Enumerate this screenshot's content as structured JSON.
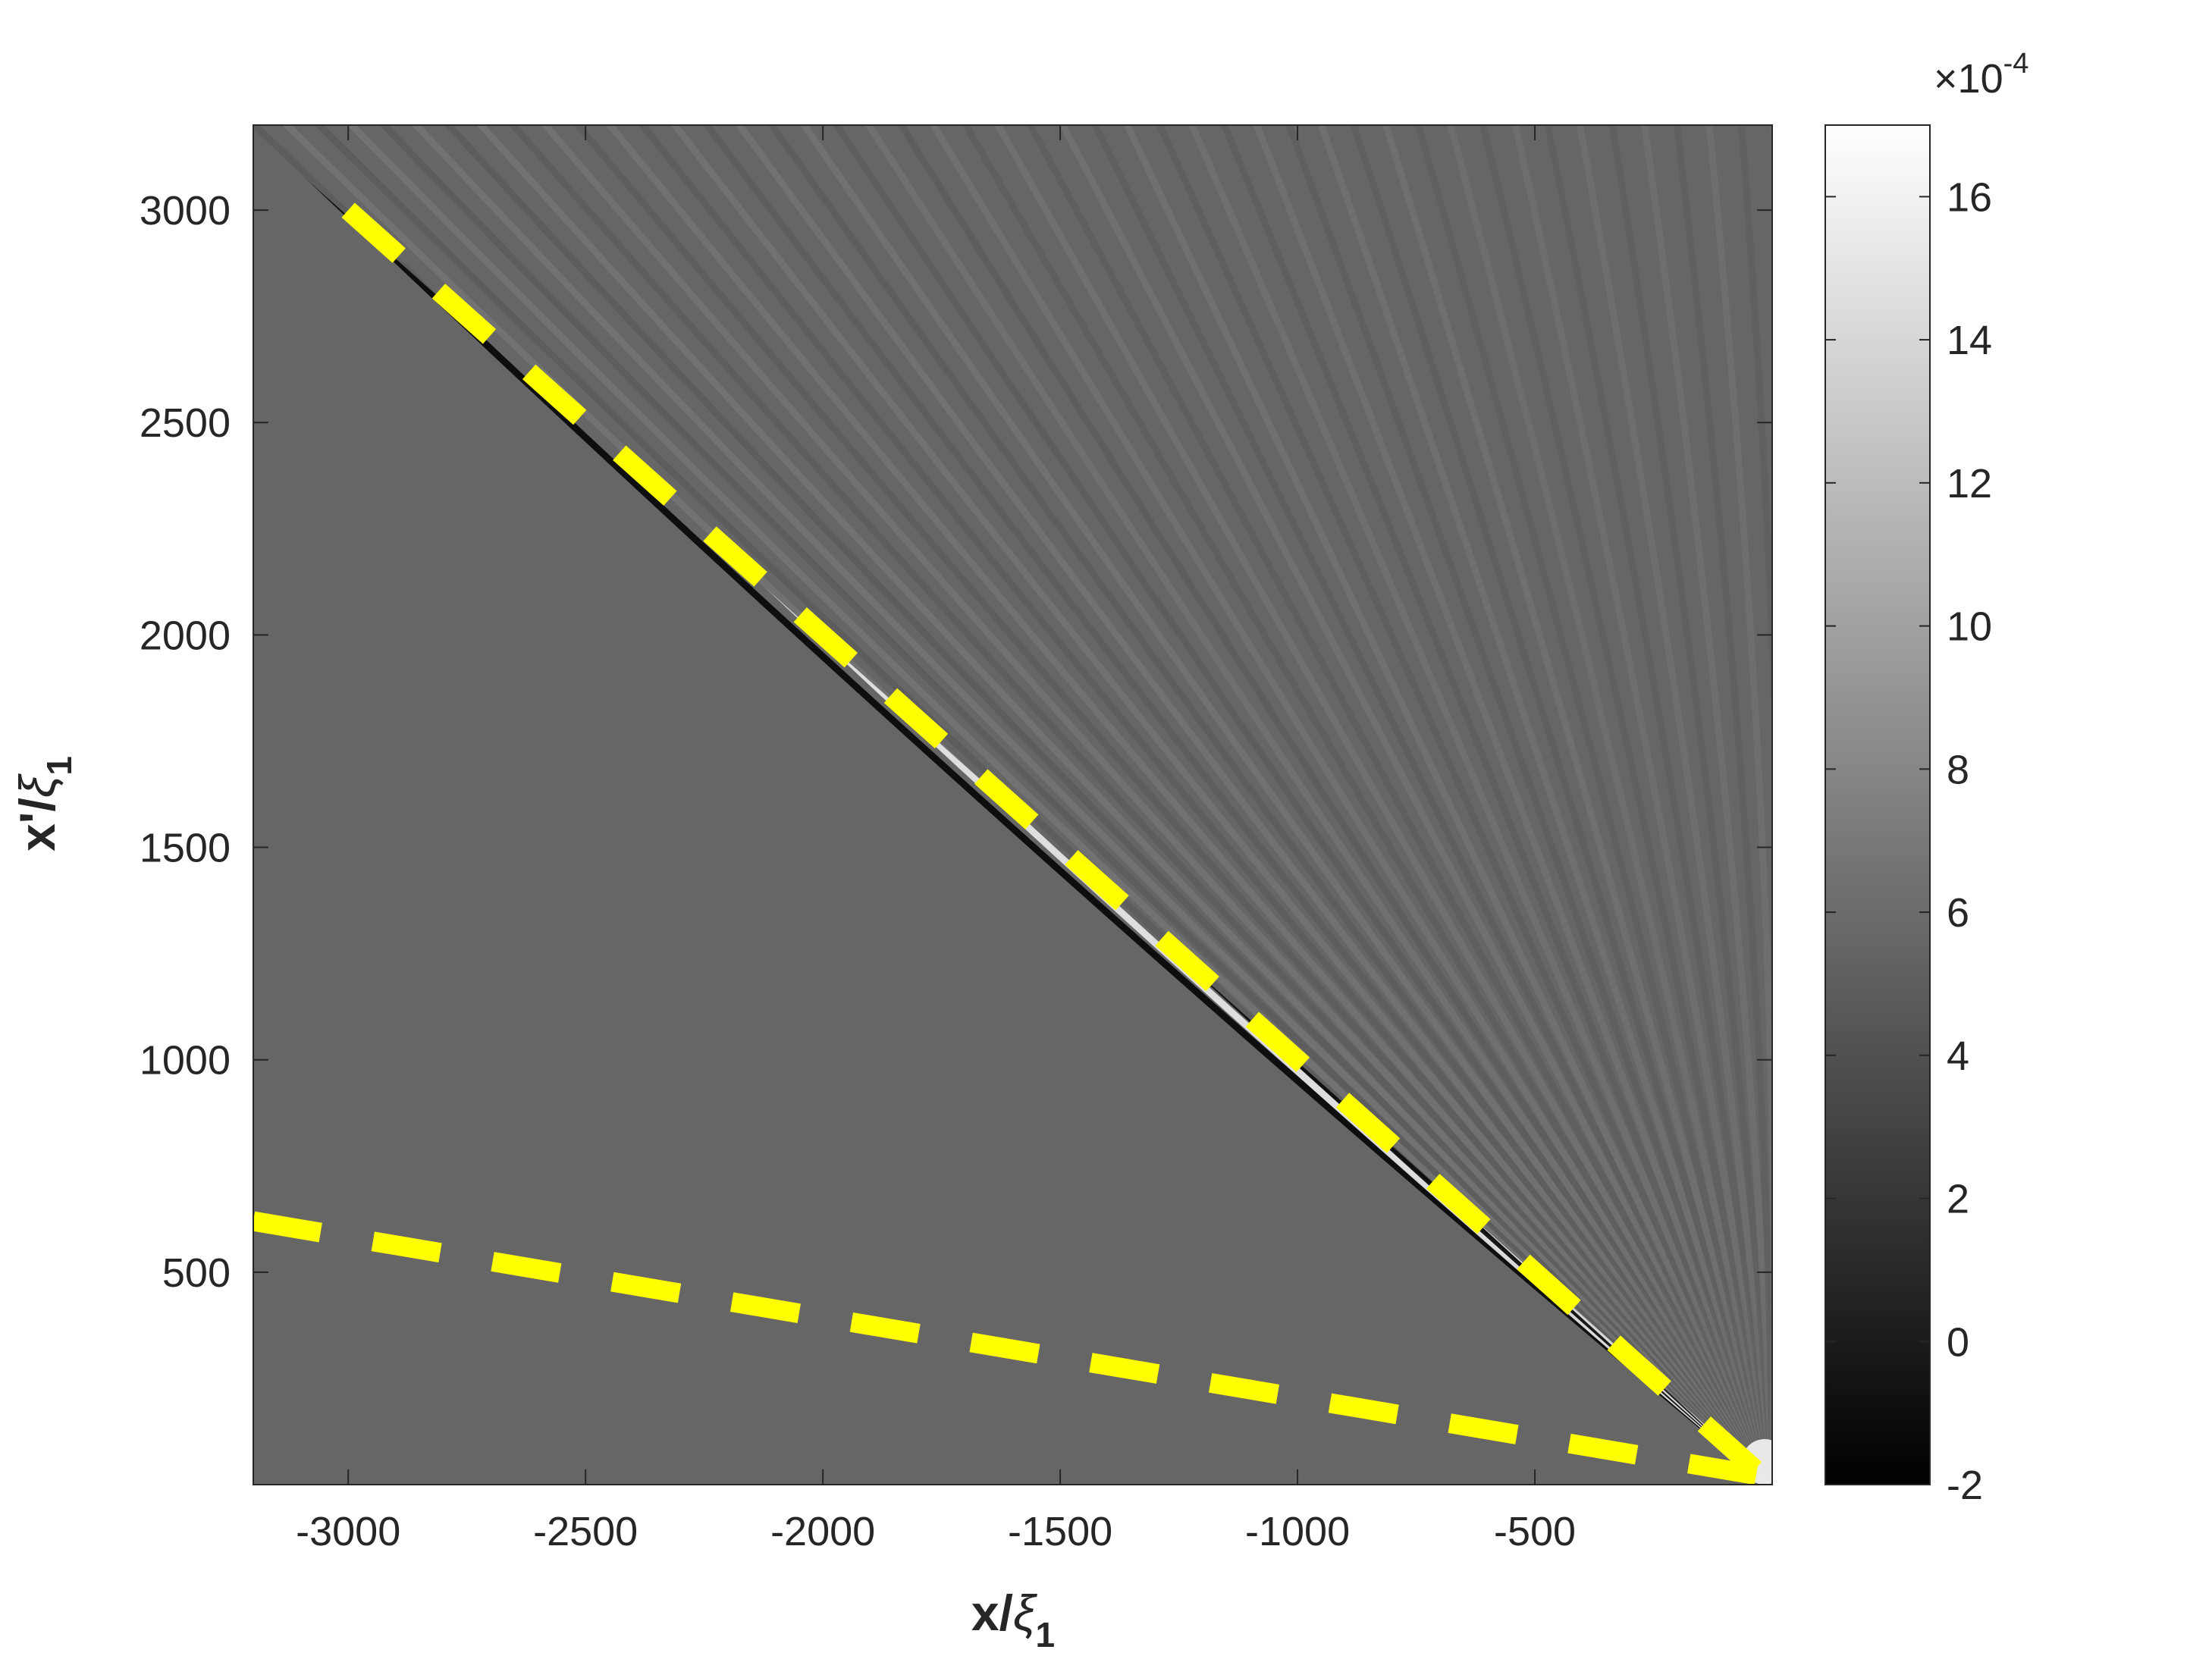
{
  "chart_data": {
    "type": "heatmap",
    "colormap": "gray",
    "xlim": [
      -3200,
      0
    ],
    "ylim": [
      0,
      3200
    ],
    "x_ticks": [
      -3000,
      -2500,
      -2000,
      -1500,
      -1000,
      -500
    ],
    "y_ticks": [
      500,
      1000,
      1500,
      2000,
      2500,
      3000
    ],
    "x_tick_labels": [
      "-3000",
      "-2500",
      "-2000",
      "-1500",
      "-1000",
      "-500"
    ],
    "y_tick_labels": [
      "500",
      "1000",
      "1500",
      "2000",
      "2500",
      "3000"
    ],
    "xlabel_main": "x/",
    "xlabel_symbol": "ξ",
    "xlabel_subscript": "1",
    "ylabel_main": "x'/",
    "ylabel_symbol": "ξ",
    "ylabel_subscript": "1",
    "colorbar": {
      "clim": [
        -2,
        17
      ],
      "ticks": [
        -2,
        0,
        2,
        4,
        6,
        8,
        10,
        12,
        14,
        16
      ],
      "tick_labels": [
        "-2",
        "0",
        "2",
        "4",
        "6",
        "8",
        "10",
        "12",
        "14",
        "16"
      ],
      "exponent_prefix": "×10",
      "exponent_power": "-4"
    },
    "background_value": 0,
    "overlay_lines": [
      {
        "style": "dashed",
        "color": "#ffff00",
        "points": [
          [
            -3000,
            3000
          ],
          [
            -20,
            20
          ]
        ]
      },
      {
        "style": "dashed",
        "color": "#ffff00",
        "points": [
          [
            -3200,
            620
          ],
          [
            -20,
            20
          ]
        ]
      }
    ],
    "colors": {
      "axis": "#262626",
      "overlay": "#ffff00",
      "background_gray": "#666666"
    }
  }
}
